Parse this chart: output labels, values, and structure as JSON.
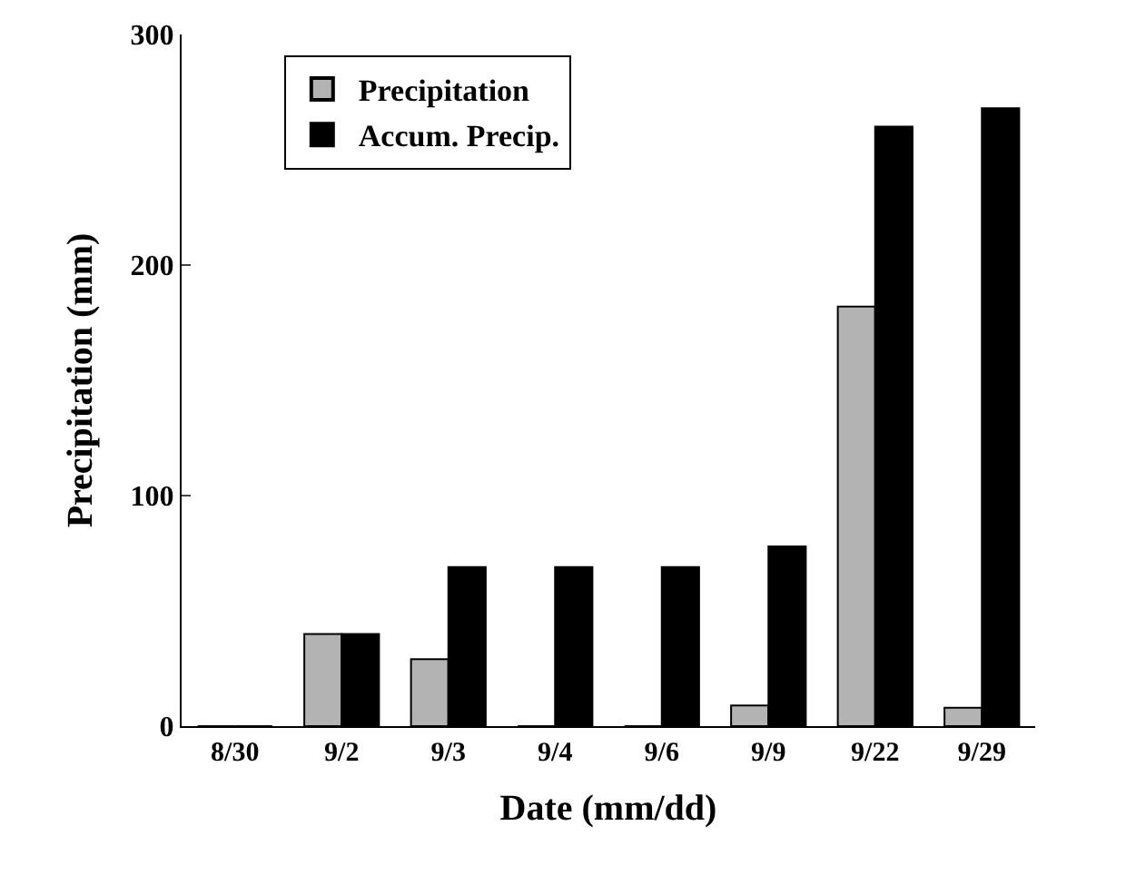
{
  "chart_data": {
    "type": "bar",
    "xlabel": "Date (mm/dd)",
    "ylabel": "Precipitation (mm)",
    "categories": [
      "8/30",
      "9/2",
      "9/3",
      "9/4",
      "9/6",
      "9/9",
      "9/22",
      "9/29"
    ],
    "series": [
      {
        "name": "Precipitation",
        "color": "#b3b3b3",
        "values": [
          0,
          40,
          29,
          0,
          0,
          9,
          182,
          8
        ]
      },
      {
        "name": "Accum. Precip.",
        "color": "#000000",
        "values": [
          0,
          40,
          69,
          69,
          69,
          78,
          260,
          268
        ]
      }
    ],
    "ylim": [
      0,
      300
    ],
    "yticks": [
      0,
      100,
      200,
      300
    ],
    "legend": "top left"
  }
}
